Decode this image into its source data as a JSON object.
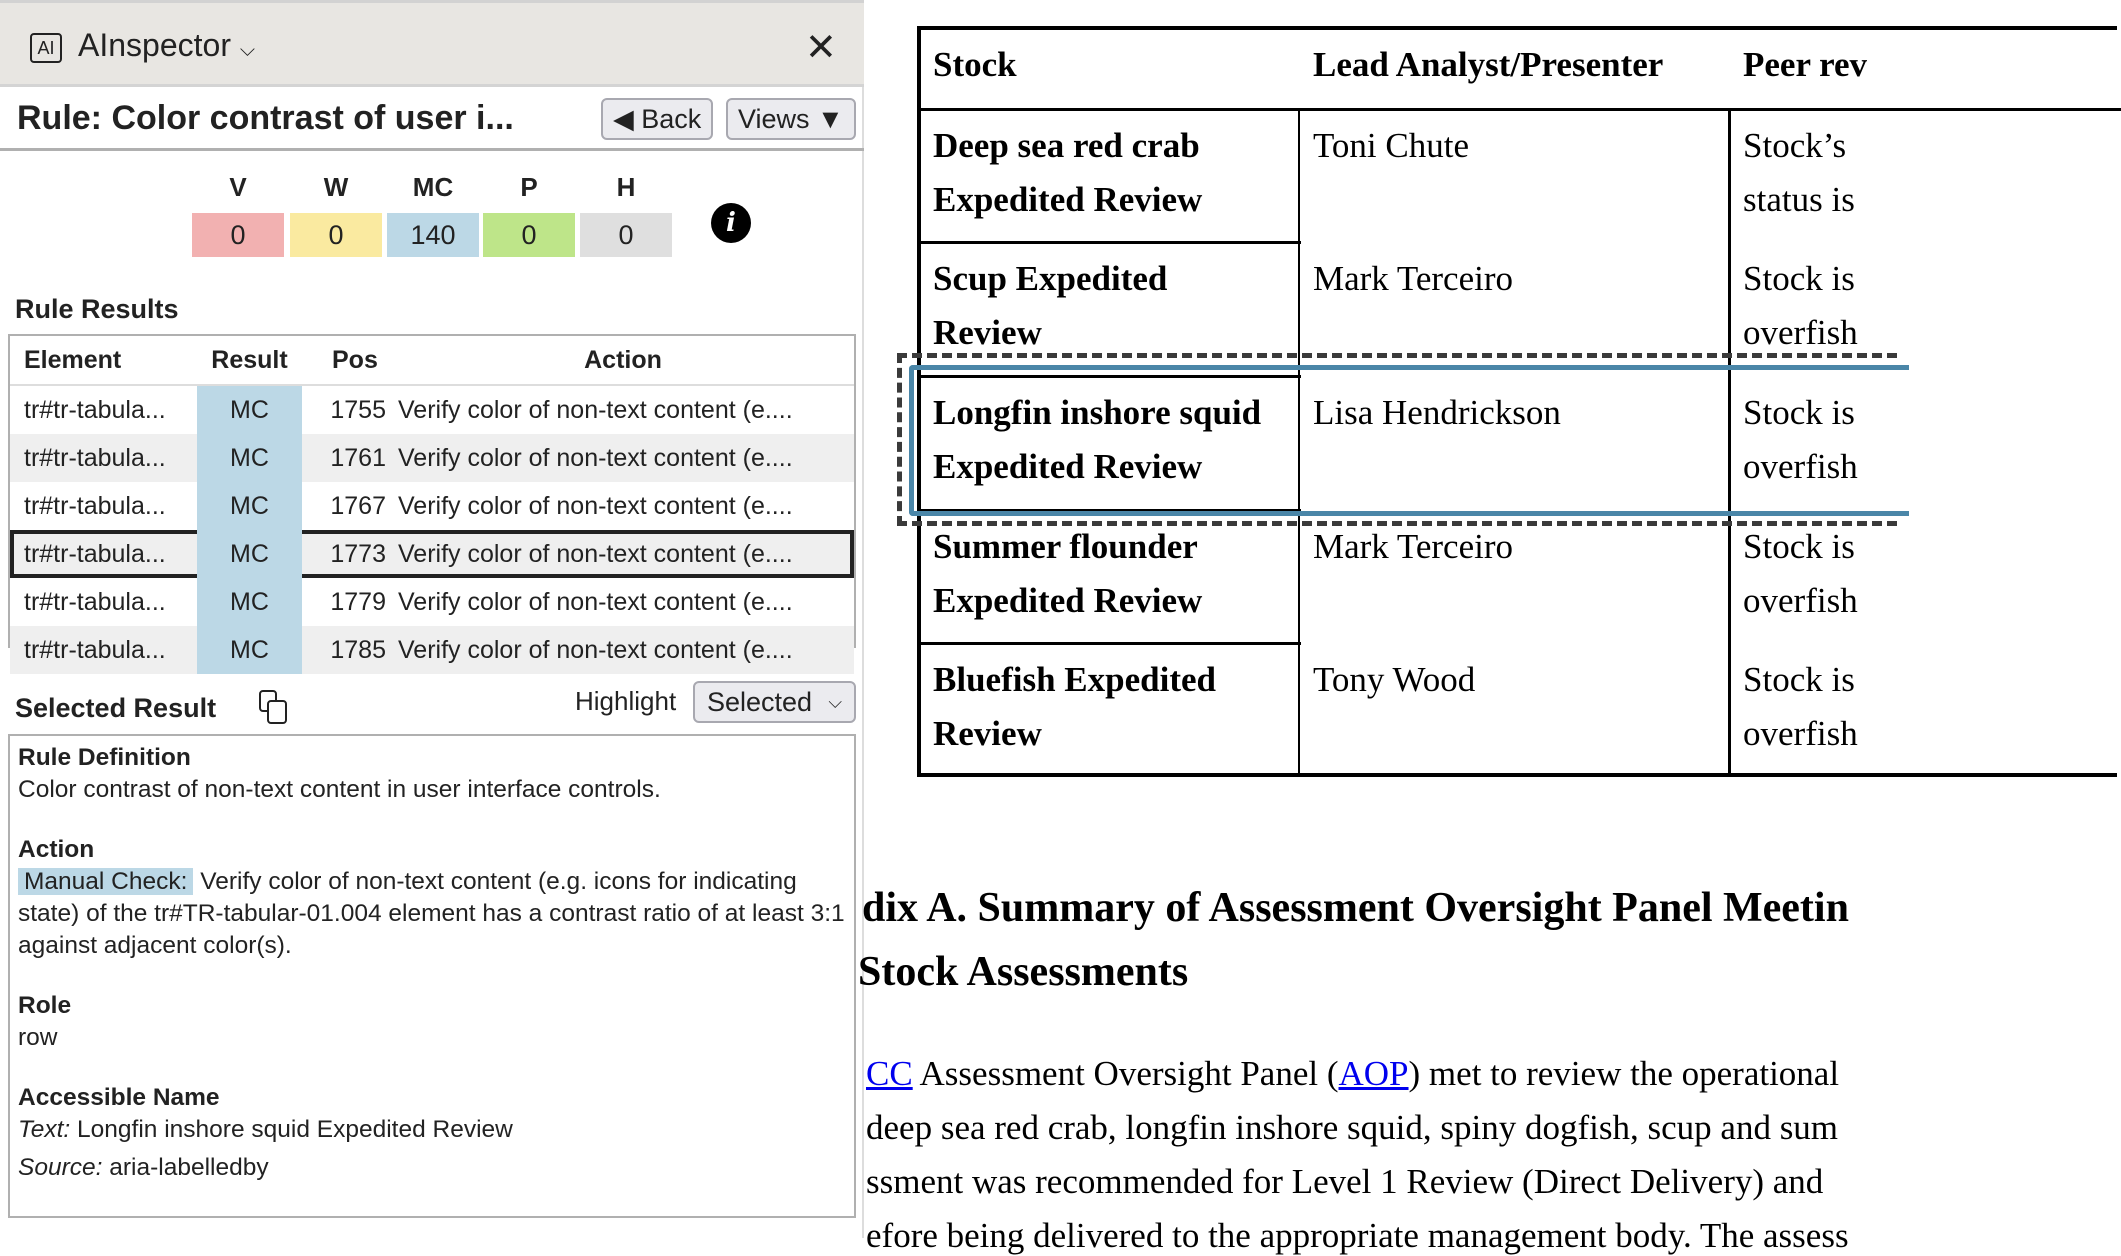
{
  "app": {
    "title": "AInspector",
    "logo": "AI",
    "close_icon": "close-icon"
  },
  "rule": {
    "title": "Rule: Color contrast of user i...",
    "back": "◀ Back",
    "views": "Views ▼"
  },
  "counts": [
    {
      "label": "V",
      "value": "0",
      "color": "#f2b1b1"
    },
    {
      "label": "W",
      "value": "0",
      "color": "#faeaa0"
    },
    {
      "label": "MC",
      "value": "140",
      "color": "#bcd8e6"
    },
    {
      "label": "P",
      "value": "0",
      "color": "#bee589"
    },
    {
      "label": "H",
      "value": "0",
      "color": "#dfdfdf"
    }
  ],
  "results": {
    "heading": "Rule Results",
    "columns": [
      "Element",
      "Result",
      "Pos",
      "Action"
    ],
    "rows": [
      {
        "element": "tr#tr-tabula...",
        "result": "MC",
        "pos": "1755",
        "action": "Verify color of non-text content (e...."
      },
      {
        "element": "tr#tr-tabula...",
        "result": "MC",
        "pos": "1761",
        "action": "Verify color of non-text content (e...."
      },
      {
        "element": "tr#tr-tabula...",
        "result": "MC",
        "pos": "1767",
        "action": "Verify color of non-text content (e...."
      },
      {
        "element": "tr#tr-tabula...",
        "result": "MC",
        "pos": "1773",
        "action": "Verify color of non-text content (e....",
        "selected": true
      },
      {
        "element": "tr#tr-tabula...",
        "result": "MC",
        "pos": "1779",
        "action": "Verify color of non-text content (e...."
      },
      {
        "element": "tr#tr-tabula...",
        "result": "MC",
        "pos": "1785",
        "action": "Verify color of non-text content (e...."
      }
    ]
  },
  "selected": {
    "heading": "Selected Result",
    "highlight_label": "Highlight",
    "highlight_value": "Selected",
    "rule_def_label": "Rule Definition",
    "rule_def": "Color contrast of non-text content in user interface controls.",
    "action_label": "Action",
    "action_tag": "Manual Check:",
    "action_text": "Verify color of non-text content (e.g. icons for indicating state) of the tr#TR-tabular-01.004 element has a contrast ratio of at least 3:1 against adjacent color(s).",
    "role_label": "Role",
    "role": "row",
    "accname_label": "Accessible Name",
    "text_label": "Text:",
    "text": "Longfin inshore squid Expedited Review",
    "source_label": "Source:",
    "source": "aria-labelledby"
  },
  "doc": {
    "table": {
      "headers": [
        "Stock",
        "Lead Analyst/Presenter",
        "Peer rev"
      ],
      "rows": [
        {
          "stock1": "Deep sea red crab",
          "stock2": "Expedited Review",
          "analyst": "Toni Chute",
          "peer1": "Stock’s",
          "peer2": "status is"
        },
        {
          "stock1": "Scup Expedited",
          "stock2": "Review",
          "analyst": "Mark Terceiro",
          "peer1": "Stock is",
          "peer2": "overfish"
        },
        {
          "stock1": "Longfin inshore squid",
          "stock2": "Expedited Review",
          "analyst": "Lisa Hendrickson",
          "peer1": "Stock is",
          "peer2": "overfish"
        },
        {
          "stock1": "Summer flounder",
          "stock2": "Expedited Review",
          "analyst": "Mark Terceiro",
          "peer1": "Stock is",
          "peer2": "overfish"
        },
        {
          "stock1": "Bluefish Expedited",
          "stock2": "Review",
          "analyst": "Tony Wood",
          "peer1": "Stock is",
          "peer2": "overfish"
        }
      ]
    },
    "heading1": "dix A.  Summary of Assessment Oversight Panel Meetin",
    "heading2": "Stock Assessments",
    "p_link1": "CC",
    "p1a": " Assessment Oversight Panel (",
    "p_link2": "AOP",
    "p1b": ") met to review the operational",
    "p2": " deep sea red crab, longfin inshore squid, spiny dogfish, scup and sum",
    "p3": "ssment was recommended for Level 1 Review (Direct Delivery) and",
    "p4": "efore being delivered to the appropriate management body. The assess"
  }
}
